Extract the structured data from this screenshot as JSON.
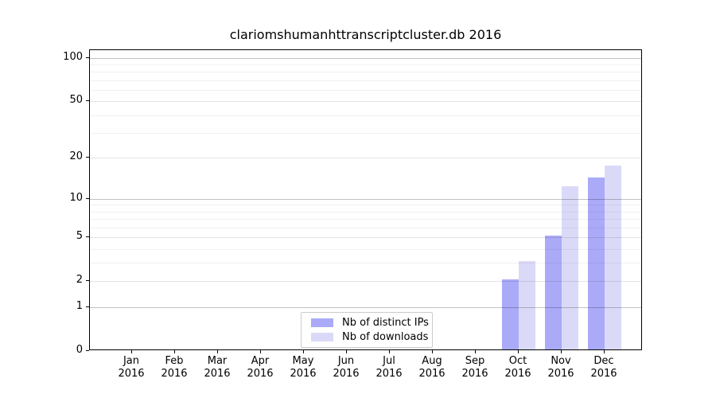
{
  "figure_title": "clariomshumanhttranscriptcluster.db 2016",
  "chart_data": {
    "type": "bar",
    "title": "clariomshumanhttranscriptcluster.db 2016",
    "categories": [
      "Jan",
      "Feb",
      "Mar",
      "Apr",
      "May",
      "Jun",
      "Jul",
      "Aug",
      "Sep",
      "Oct",
      "Nov",
      "Dec"
    ],
    "x_year": "2016",
    "series": [
      {
        "name": "Nb of distinct IPs",
        "color": "#aaaaf8",
        "values": [
          0,
          0,
          0,
          0,
          0,
          0,
          0,
          0,
          0,
          2,
          5,
          14
        ]
      },
      {
        "name": "Nb of downloads",
        "color": "#dadaf8",
        "values": [
          0,
          0,
          0,
          0,
          0,
          0,
          0,
          0,
          0,
          3,
          12,
          17
        ]
      }
    ],
    "y_axis": {
      "scale": "log1p",
      "ylim": [
        0,
        113
      ],
      "ticks": [
        0,
        1,
        2,
        5,
        10,
        20,
        50,
        100
      ],
      "major_gridlines": [
        1,
        10,
        100
      ],
      "mid_gridlines": [
        2,
        5,
        20,
        50
      ],
      "minor_gridlines": [
        3,
        4,
        6,
        7,
        8,
        9,
        30,
        40,
        60,
        70,
        80,
        90
      ]
    },
    "grid": true,
    "legend": {
      "position": "lower center",
      "entries": [
        "Nb of distinct IPs",
        "Nb of downloads"
      ]
    }
  },
  "colors": {
    "background": "#ffffff",
    "axis": "#000000",
    "text": "#000000",
    "bar_distinct_ips": "#aaaaf8",
    "bar_downloads": "#dadaf8",
    "grid_major": "rgba(0,0,0,0.24)",
    "grid_mid": "rgba(0,0,0,0.11)",
    "grid_minor": "rgba(0,0,0,0.055)",
    "legend_border": "#cccccc"
  }
}
